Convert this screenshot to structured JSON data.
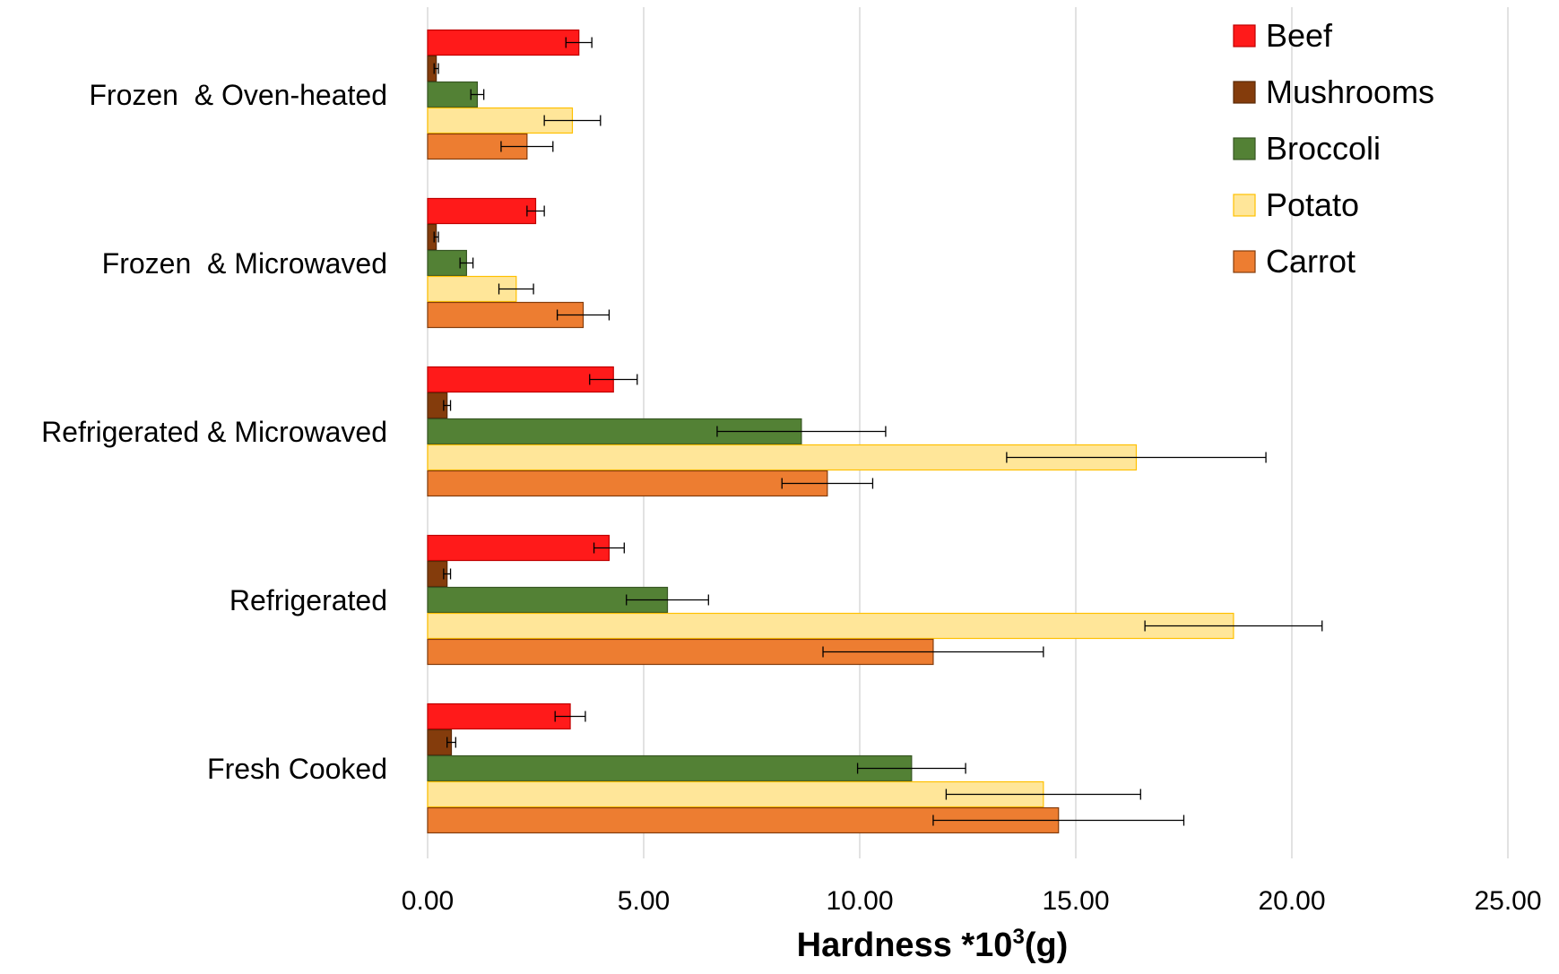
{
  "chart_data": {
    "type": "bar",
    "orientation": "horizontal",
    "categories": [
      "Frozen  & Oven-heated",
      "Frozen  & Microwaved",
      "Refrigerated & Microwaved",
      "Refrigerated",
      "Fresh Cooked"
    ],
    "series": [
      {
        "name": "Beef",
        "color": "#ff1a1a",
        "stroke": "#c00000",
        "values": [
          3.5,
          2.5,
          4.3,
          4.2,
          3.3
        ],
        "errors": [
          0.3,
          0.2,
          0.55,
          0.35,
          0.35
        ]
      },
      {
        "name": "Mushrooms",
        "color": "#843c0c",
        "stroke": "#5a2a08",
        "values": [
          0.2,
          0.2,
          0.45,
          0.45,
          0.55
        ],
        "errors": [
          0.05,
          0.05,
          0.08,
          0.08,
          0.1
        ]
      },
      {
        "name": "Broccoli",
        "color": "#538135",
        "stroke": "#375623",
        "values": [
          1.15,
          0.9,
          8.65,
          5.55,
          11.2
        ],
        "errors": [
          0.15,
          0.15,
          1.95,
          0.95,
          1.25
        ]
      },
      {
        "name": "Potato",
        "color": "#ffe699",
        "stroke": "#ffc000",
        "values": [
          3.35,
          2.05,
          16.4,
          18.65,
          14.25
        ],
        "errors": [
          0.65,
          0.4,
          3.0,
          2.05,
          2.25
        ]
      },
      {
        "name": "Carrot",
        "color": "#ed7d31",
        "stroke": "#843c0c",
        "values": [
          2.3,
          3.6,
          9.25,
          11.7,
          14.6
        ],
        "errors": [
          0.6,
          0.6,
          1.05,
          2.55,
          2.9
        ]
      }
    ],
    "xlim": [
      0,
      25
    ],
    "xticks": [
      "0.00",
      "5.00",
      "10.00",
      "15.00",
      "20.00",
      "25.00"
    ],
    "xtick_values": [
      0,
      5,
      10,
      15,
      20,
      25
    ],
    "xlabel_main": "Hardness *10",
    "xlabel_sup": "3",
    "xlabel_tail": "(g)",
    "grid": true,
    "legend_position": "top-right"
  }
}
